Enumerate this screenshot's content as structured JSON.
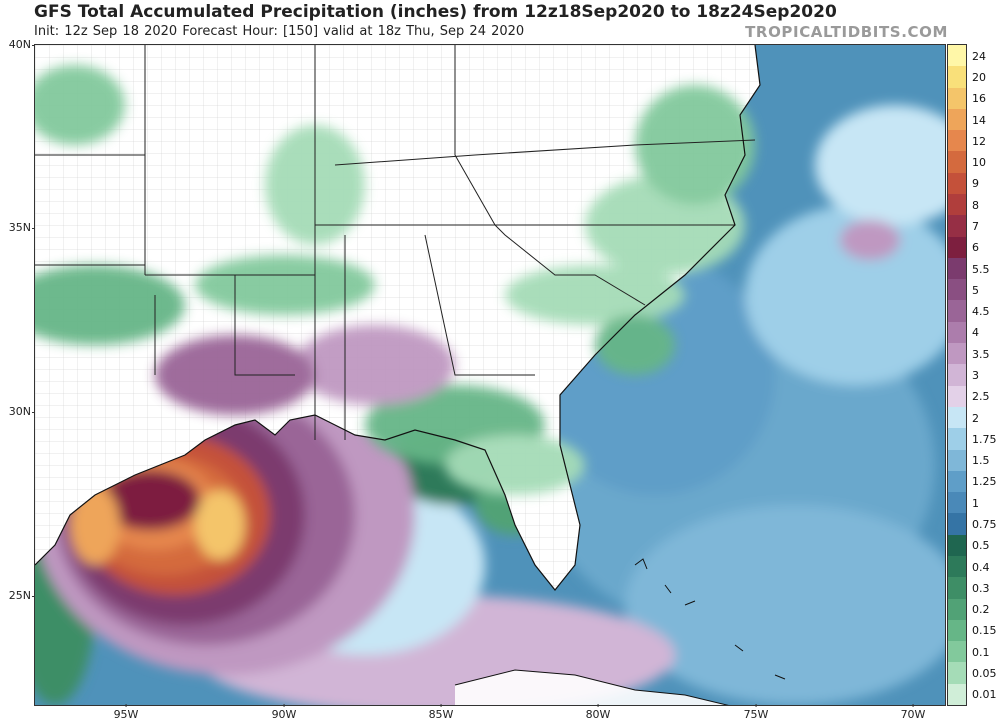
{
  "header": {
    "title": "GFS Total Accumulated Precipitation (inches) from 12z18Sep2020 to 18z24Sep2020",
    "subtitle": "Init: 12z Sep 18 2020   Forecast Hour: [150]   valid at 18z Thu, Sep 24 2020",
    "brand": "TROPICALTIDBITS.COM"
  },
  "axes": {
    "lat_labels": [
      "40N",
      "35N",
      "30N",
      "25N"
    ],
    "lon_labels": [
      "95W",
      "90W",
      "85W",
      "80W",
      "75W",
      "70W"
    ]
  },
  "colorbar": {
    "levels": [
      "24",
      "20",
      "16",
      "14",
      "12",
      "10",
      "9",
      "8",
      "7",
      "6",
      "5.5",
      "5",
      "4.5",
      "4",
      "3.5",
      "3",
      "2.5",
      "2",
      "1.75",
      "1.5",
      "1.25",
      "1",
      "0.75",
      "0.5",
      "0.4",
      "0.3",
      "0.2",
      "0.15",
      "0.1",
      "0.05",
      "0.01"
    ],
    "colors": [
      "#fff7a8",
      "#f9e07a",
      "#f4c56a",
      "#eea55a",
      "#e6874d",
      "#d46a3e",
      "#c4513a",
      "#b03e3c",
      "#962f45",
      "#7d1f3f",
      "#7b3b6e",
      "#8a4f82",
      "#9a6597",
      "#ac7dac",
      "#bf98c1",
      "#d1b5d6",
      "#e3d1e8",
      "#c7e6f5",
      "#9ecfe8",
      "#7fb7d8",
      "#5f9ec8",
      "#4a89b8",
      "#3574a5",
      "#1f6650",
      "#2d7a5a",
      "#3e8e66",
      "#51a276",
      "#66b687",
      "#82c99c",
      "#a5dcb7",
      "#d0eed8"
    ]
  },
  "map": {
    "ocean_color": "#3f84ad",
    "land_color": "#ffffff",
    "border_color": "#222222"
  }
}
